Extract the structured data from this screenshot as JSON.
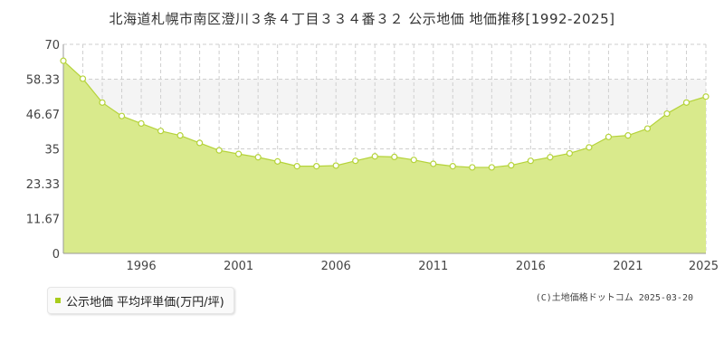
{
  "title": "北海道札幌市南区澄川３条４丁目３３４番３２ 公示地価 地価推移[1992-2025]",
  "legend_label": "公示地価 平均坪単価(万円/坪)",
  "credit": "(C)土地価格ドットコム 2025-03-20",
  "colors": {
    "area_fill": "#d9ea8c",
    "line": "#b5d33a",
    "marker_stroke": "#b5d33a",
    "marker_fill": "#ffffff",
    "legend_swatch": "#a8cc1c",
    "band": "#f4f4f4",
    "grid": "#cfcfcf"
  },
  "chart_data": {
    "type": "area",
    "title": "北海道札幌市南区澄川３条４丁目３３４番３２ 公示地価 地価推移[1992-2025]",
    "xlabel": "",
    "ylabel": "",
    "ylim": [
      0,
      70
    ],
    "y_ticks": [
      "0",
      "11.67",
      "23.33",
      "35",
      "46.67",
      "58.33",
      "70"
    ],
    "x_ticks": [
      "1996",
      "2001",
      "2006",
      "2011",
      "2016",
      "2021",
      "2025"
    ],
    "grid": true,
    "band": [
      46.67,
      58.33
    ],
    "series": [
      {
        "name": "公示地価 平均坪単価(万円/坪)",
        "x": [
          1992,
          1993,
          1994,
          1995,
          1996,
          1997,
          1998,
          1999,
          2000,
          2001,
          2002,
          2003,
          2004,
          2005,
          2006,
          2007,
          2008,
          2009,
          2010,
          2011,
          2012,
          2013,
          2014,
          2015,
          2016,
          2017,
          2018,
          2019,
          2020,
          2021,
          2022,
          2023,
          2024,
          2025
        ],
        "values": [
          64.5,
          58.5,
          50.5,
          46.0,
          43.5,
          41.0,
          39.5,
          37.0,
          34.5,
          33.3,
          32.2,
          30.8,
          29.2,
          29.2,
          29.4,
          31.0,
          32.5,
          32.3,
          31.3,
          30.0,
          29.2,
          28.8,
          28.8,
          29.5,
          31.0,
          32.2,
          33.5,
          35.5,
          39.0,
          39.5,
          41.8,
          46.8,
          50.5,
          52.5
        ]
      }
    ]
  }
}
